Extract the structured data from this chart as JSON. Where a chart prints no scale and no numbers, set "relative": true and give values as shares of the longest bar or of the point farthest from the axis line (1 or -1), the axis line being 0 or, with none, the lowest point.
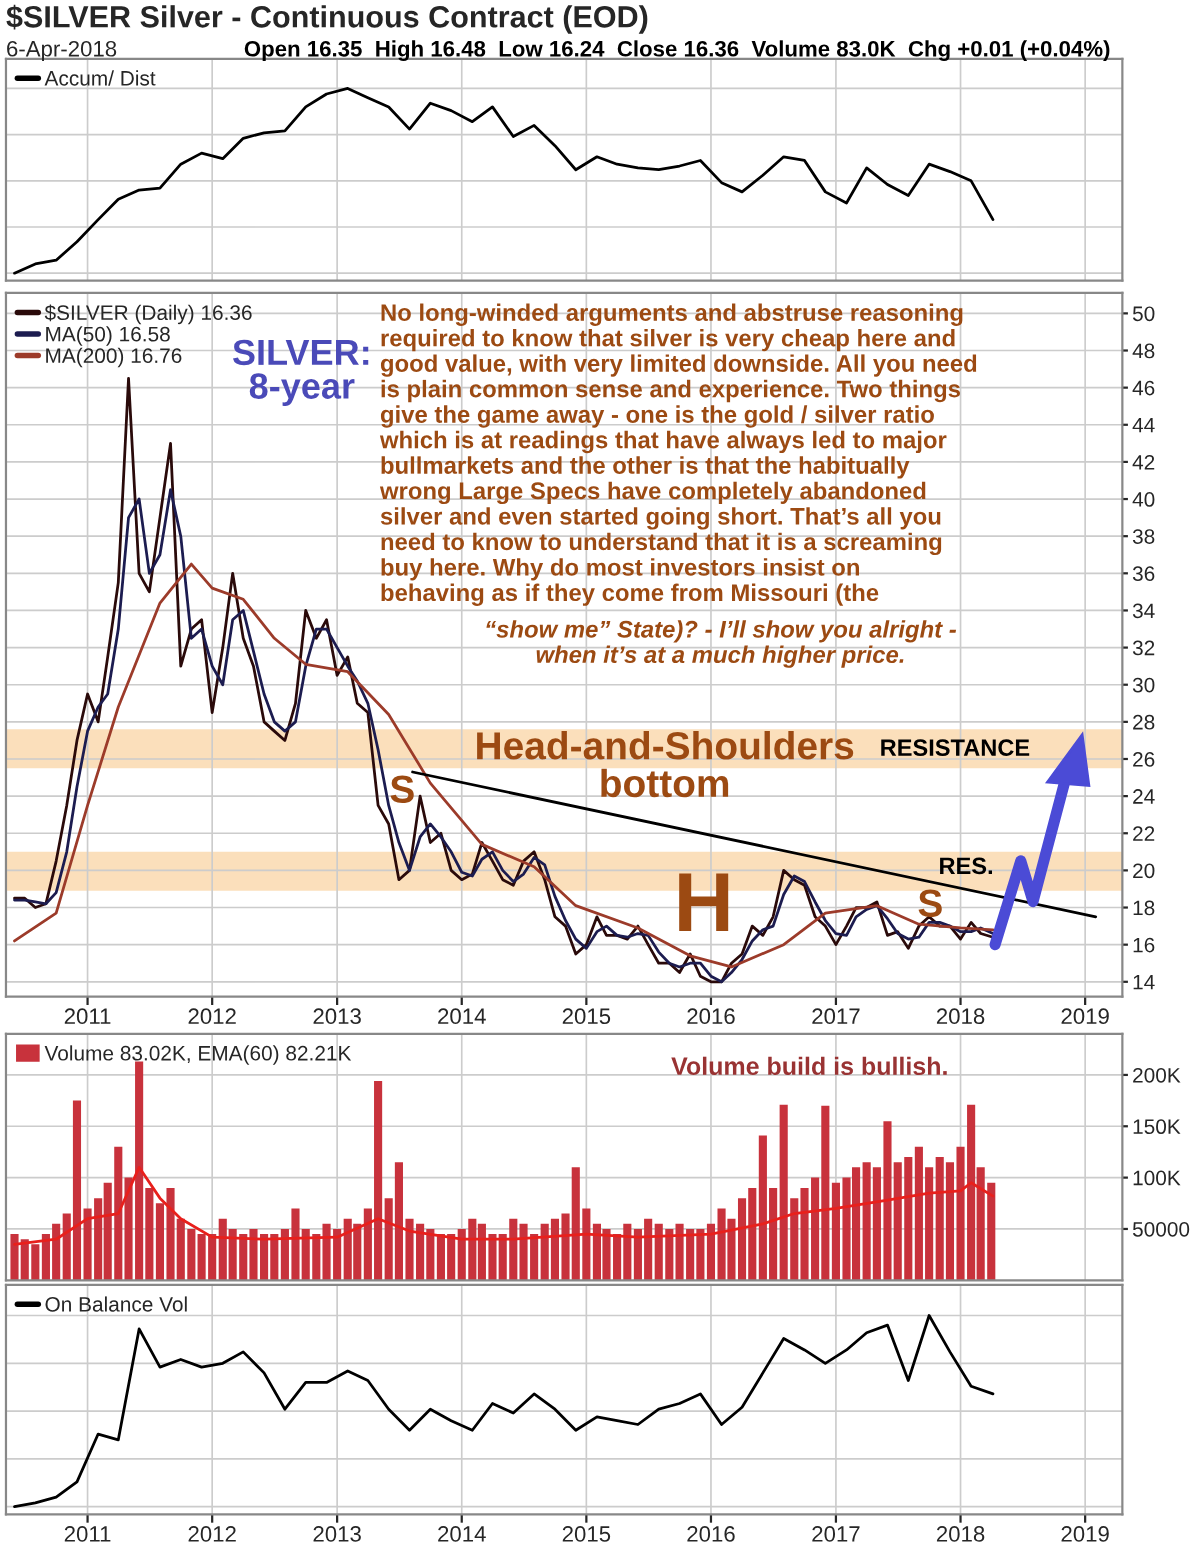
{
  "chart_data": [
    {
      "type": "line",
      "title": "$SILVER Silver - Continuous Contract (EOD)",
      "subtitle": "6-Apr-2018",
      "annotations": [
        "Open 16.35  High 16.48  Low 16.24  Close 16.36  Volume 83.0K  Chg +0.01 (+0.04%)"
      ],
      "relative": true,
      "tick_labels": false,
      "grid": true,
      "legend": "top left",
      "xlim": [
        "2010-05-07",
        "2019-04-20"
      ],
      "xticks": [
        "2011",
        "2012",
        "2013",
        "2014",
        "2015",
        "2016",
        "2017",
        "2018",
        "2019"
      ],
      "x": [
        "2010-06",
        "2010-08",
        "2010-10",
        "2010-12",
        "2011-02",
        "2011-04",
        "2011-06",
        "2011-08",
        "2011-10",
        "2011-12",
        "2012-02",
        "2012-04",
        "2012-06",
        "2012-08",
        "2012-10",
        "2012-12",
        "2013-02",
        "2013-04",
        "2013-06",
        "2013-08",
        "2013-10",
        "2013-12",
        "2014-02",
        "2014-04",
        "2014-06",
        "2014-08",
        "2014-10",
        "2014-12",
        "2015-02",
        "2015-04",
        "2015-06",
        "2015-08",
        "2015-10",
        "2015-12",
        "2016-02",
        "2016-04",
        "2016-06",
        "2016-08",
        "2016-10",
        "2016-12",
        "2017-02",
        "2017-04",
        "2017-06",
        "2017-08",
        "2017-10",
        "2017-12",
        "2018-02",
        "2018-04-06"
      ],
      "series": [
        {
          "name": "Accum/ Dist",
          "color": "#000000",
          "values": [
            0.0,
            0.05,
            0.07,
            0.17,
            0.29,
            0.4,
            0.45,
            0.46,
            0.59,
            0.65,
            0.62,
            0.73,
            0.76,
            0.77,
            0.9,
            0.97,
            1.0,
            0.95,
            0.9,
            0.78,
            0.92,
            0.88,
            0.82,
            0.9,
            0.74,
            0.8,
            0.69,
            0.56,
            0.63,
            0.59,
            0.57,
            0.56,
            0.58,
            0.61,
            0.49,
            0.44,
            0.53,
            0.63,
            0.61,
            0.44,
            0.38,
            0.57,
            0.48,
            0.42,
            0.59,
            0.55,
            0.5,
            0.29
          ]
        }
      ]
    },
    {
      "type": "line",
      "grid": true,
      "legend": "top left",
      "xlim": [
        "2010-05-07",
        "2019-04-20"
      ],
      "xticks": [
        "2011",
        "2012",
        "2013",
        "2014",
        "2015",
        "2016",
        "2017",
        "2018",
        "2019"
      ],
      "ylim": [
        13.2,
        51.1
      ],
      "yticks": [
        14,
        16,
        18,
        20,
        22,
        24,
        26,
        28,
        30,
        32,
        34,
        36,
        38,
        40,
        42,
        44,
        46,
        48,
        50
      ],
      "annotations": [
        "No long-winded arguments and abstruse reasoning\nrequired to know that silver is very cheap here and\ngood value, with very limited downside. All you need\nis plain common sense and experience. Two things\ngive the game away - one is the gold / silver ratio\nwhich is at readings that have always led to major\nbullmarkets and the other is that the habitually\nwrong Large Specs have completely abandoned\nsilver and even started going short. That’s all you\nneed to know to understand that it is a screaming\nbuy here. Why do most investors insist on\nbehaving as if they come from Missouri (the",
        "“show me” State)? - I’ll show you alright -\nwhen it’s at a much higher price.",
        "SILVER:\n8-year",
        "Head-and-Shoulders\nbottom",
        "RESISTANCE",
        "RES.",
        "S",
        "H",
        "S"
      ],
      "bands": [
        {
          "axis": "y",
          "from": 25.5,
          "to": 27.6,
          "color": "#fbdfbb"
        },
        {
          "axis": "y",
          "from": 18.9,
          "to": 21.0,
          "color": "#fbdfbb"
        }
      ],
      "x": [
        "2010-06",
        "2010-07",
        "2010-08",
        "2010-09",
        "2010-10",
        "2010-11",
        "2010-12",
        "2011-01",
        "2011-02",
        "2011-03",
        "2011-04",
        "2011-05",
        "2011-06",
        "2011-07",
        "2011-08",
        "2011-09",
        "2011-10",
        "2011-11",
        "2011-12",
        "2012-01",
        "2012-02",
        "2012-03",
        "2012-04",
        "2012-05",
        "2012-06",
        "2012-07",
        "2012-08",
        "2012-09",
        "2012-10",
        "2012-11",
        "2012-12",
        "2013-01",
        "2013-02",
        "2013-03",
        "2013-04",
        "2013-05",
        "2013-06",
        "2013-07",
        "2013-08",
        "2013-09",
        "2013-10",
        "2013-11",
        "2013-12",
        "2014-01",
        "2014-02",
        "2014-03",
        "2014-04",
        "2014-05",
        "2014-06",
        "2014-07",
        "2014-08",
        "2014-09",
        "2014-10",
        "2014-11",
        "2014-12",
        "2015-01",
        "2015-02",
        "2015-03",
        "2015-04",
        "2015-05",
        "2015-06",
        "2015-07",
        "2015-08",
        "2015-09",
        "2015-10",
        "2015-11",
        "2015-12",
        "2016-01",
        "2016-02",
        "2016-03",
        "2016-04",
        "2016-05",
        "2016-06",
        "2016-07",
        "2016-08",
        "2016-09",
        "2016-10",
        "2016-11",
        "2016-12",
        "2017-01",
        "2017-02",
        "2017-03",
        "2017-04",
        "2017-05",
        "2017-06",
        "2017-07",
        "2017-08",
        "2017-09",
        "2017-10",
        "2017-11",
        "2017-12",
        "2018-01",
        "2018-02",
        "2018-03",
        "2018-04-06"
      ],
      "series": [
        {
          "name": "$SILVER (Daily) 16.36",
          "color": "#2a0a0a",
          "values": [
            18.5,
            18.5,
            18.0,
            18.2,
            20.5,
            23.5,
            27.0,
            29.5,
            28.0,
            31.5,
            35.5,
            46.5,
            36.0,
            35.0,
            39.0,
            43.0,
            31.0,
            33.0,
            33.5,
            28.5,
            32.0,
            36.0,
            32.5,
            31.0,
            28.0,
            27.5,
            27.0,
            29.0,
            34.0,
            32.5,
            33.5,
            30.5,
            31.5,
            29.0,
            28.5,
            23.5,
            22.5,
            19.5,
            20.0,
            24.0,
            21.5,
            22.0,
            20.0,
            19.5,
            19.8,
            21.5,
            20.5,
            19.5,
            19.2,
            20.5,
            21.0,
            19.5,
            17.5,
            17.0,
            15.5,
            16.0,
            17.5,
            16.5,
            16.5,
            16.3,
            17.0,
            16.0,
            15.0,
            15.0,
            14.5,
            15.5,
            14.3,
            14.0,
            14.0,
            15.0,
            15.5,
            17.0,
            16.5,
            17.5,
            20.0,
            19.5,
            19.2,
            17.5,
            17.0,
            16.0,
            17.0,
            18.0,
            18.0,
            18.3,
            16.5,
            16.7,
            15.8,
            17.0,
            17.5,
            17.0,
            17.0,
            16.3,
            17.2,
            16.6,
            16.4
          ]
        },
        {
          "name": "MA(50) 16.58",
          "color": "#1c1c50",
          "values": [
            18.4,
            18.4,
            18.3,
            18.2,
            18.8,
            21.0,
            24.5,
            27.5,
            28.8,
            29.5,
            33.0,
            39.0,
            40.0,
            36.0,
            37.0,
            40.5,
            38.0,
            32.5,
            33.0,
            31.0,
            30.0,
            33.5,
            34.0,
            31.8,
            29.5,
            28.0,
            27.5,
            28.0,
            31.0,
            33.0,
            33.0,
            32.0,
            31.0,
            30.2,
            29.0,
            26.5,
            23.5,
            21.5,
            20.0,
            21.8,
            22.5,
            21.8,
            21.0,
            19.9,
            19.7,
            20.6,
            21.0,
            20.0,
            19.4,
            19.8,
            20.7,
            20.3,
            18.6,
            17.3,
            16.3,
            15.8,
            16.7,
            17.0,
            16.5,
            16.4,
            16.6,
            16.5,
            15.6,
            15.0,
            14.8,
            15.0,
            15.0,
            14.3,
            14.0,
            14.5,
            15.2,
            16.2,
            16.8,
            17.0,
            18.7,
            19.7,
            19.4,
            18.3,
            17.3,
            16.6,
            16.5,
            17.5,
            17.9,
            18.1,
            17.4,
            16.6,
            16.3,
            16.4,
            17.2,
            17.2,
            17.0,
            16.7,
            16.7,
            16.9,
            16.6
          ]
        },
        {
          "name": "MA(200) 16.76",
          "color": "#9c3b2a",
          "x": [
            "2010-06",
            "2010-10",
            "2011-01",
            "2011-04",
            "2011-08",
            "2011-11",
            "2012-01",
            "2012-04",
            "2012-07",
            "2012-10",
            "2013-02",
            "2013-06",
            "2013-10",
            "2014-03",
            "2014-08",
            "2014-12",
            "2015-06",
            "2015-11",
            "2016-03",
            "2016-08",
            "2016-12",
            "2017-05",
            "2017-09",
            "2018-01",
            "2018-04-06"
          ],
          "values": [
            16.2,
            17.7,
            23.5,
            28.8,
            34.4,
            36.5,
            35.2,
            34.6,
            32.5,
            31.1,
            30.7,
            28.4,
            24.7,
            21.4,
            20.2,
            18.1,
            16.9,
            15.4,
            14.8,
            16.0,
            17.7,
            18.1,
            17.1,
            16.9,
            16.8
          ]
        },
        {
          "type": "line",
          "color": "#000000",
          "x": [
            "2013-08-10",
            "2019-02-01"
          ],
          "values": [
            25.3,
            17.5
          ]
        }
      ]
    },
    {
      "type": "bar",
      "grid": true,
      "legend": "top left",
      "tick_labels": "y",
      "xlim": [
        "2010-05-07",
        "2019-04-20"
      ],
      "xticks": [
        "2011",
        "2012",
        "2013",
        "2014",
        "2015",
        "2016",
        "2017",
        "2018",
        "2019"
      ],
      "ylim": [
        0,
        240000
      ],
      "yticks": [
        {
          "value": 50000,
          "label": "50000"
        },
        {
          "value": 100000,
          "label": "100K"
        },
        {
          "value": 150000,
          "label": "150K"
        },
        {
          "value": 200000,
          "label": "200K"
        }
      ],
      "annotations": [
        "Volume build is bullish."
      ],
      "series": [
        {
          "name": "Volume 83.02K, EMA(60) 82.21K",
          "color": "#c8323c",
          "x": [
            "2010-06",
            "2010-07",
            "2010-08",
            "2010-09",
            "2010-10",
            "2010-11",
            "2010-12",
            "2011-01",
            "2011-02",
            "2011-03",
            "2011-04",
            "2011-05",
            "2011-06",
            "2011-07",
            "2011-08",
            "2011-09",
            "2011-10",
            "2011-11",
            "2011-12",
            "2012-01",
            "2012-02",
            "2012-03",
            "2012-04",
            "2012-05",
            "2012-06",
            "2012-07",
            "2012-08",
            "2012-09",
            "2012-10",
            "2012-11",
            "2012-12",
            "2013-01",
            "2013-02",
            "2013-03",
            "2013-04",
            "2013-05",
            "2013-06",
            "2013-07",
            "2013-08",
            "2013-09",
            "2013-10",
            "2013-11",
            "2013-12",
            "2014-01",
            "2014-02",
            "2014-03",
            "2014-04",
            "2014-05",
            "2014-06",
            "2014-07",
            "2014-08",
            "2014-09",
            "2014-10",
            "2014-11",
            "2014-12",
            "2015-01",
            "2015-02",
            "2015-03",
            "2015-04",
            "2015-05",
            "2015-06",
            "2015-07",
            "2015-08",
            "2015-09",
            "2015-10",
            "2015-11",
            "2015-12",
            "2016-01",
            "2016-02",
            "2016-03",
            "2016-04",
            "2016-05",
            "2016-06",
            "2016-07",
            "2016-08",
            "2016-09",
            "2016-10",
            "2016-11",
            "2016-12",
            "2017-01",
            "2017-02",
            "2017-03",
            "2017-04",
            "2017-05",
            "2017-06",
            "2017-07",
            "2017-08",
            "2017-09",
            "2017-10",
            "2017-11",
            "2017-12",
            "2018-01",
            "2018-02",
            "2018-03",
            "2018-04"
          ],
          "values": [
            45000,
            40000,
            35000,
            45000,
            55000,
            65000,
            175000,
            70000,
            80000,
            95000,
            130000,
            100000,
            213000,
            90000,
            75000,
            90000,
            60000,
            50000,
            45000,
            45000,
            60000,
            50000,
            45000,
            50000,
            45000,
            45000,
            50000,
            70000,
            50000,
            45000,
            55000,
            50000,
            60000,
            55000,
            70000,
            194000,
            80000,
            115000,
            60000,
            55000,
            50000,
            45000,
            45000,
            50000,
            60000,
            55000,
            45000,
            45000,
            60000,
            55000,
            45000,
            55000,
            60000,
            65000,
            110000,
            70000,
            55000,
            50000,
            45000,
            55000,
            50000,
            60000,
            55000,
            50000,
            55000,
            50000,
            50000,
            55000,
            70000,
            60000,
            80000,
            90000,
            141000,
            90000,
            171000,
            80000,
            90000,
            100000,
            170000,
            95000,
            100000,
            110000,
            115000,
            110000,
            155000,
            115000,
            120000,
            130000,
            110000,
            120000,
            115000,
            130000,
            171000,
            110000,
            95000
          ]
        },
        {
          "type": "line",
          "color": "#e8201c",
          "x": [
            "2010-06",
            "2010-10",
            "2011-01",
            "2011-04",
            "2011-06",
            "2011-08",
            "2011-10",
            "2012-01",
            "2012-06",
            "2013-01",
            "2013-05",
            "2013-08",
            "2014-01",
            "2014-06",
            "2015-01",
            "2015-06",
            "2016-01",
            "2016-06",
            "2016-09",
            "2017-01",
            "2017-06",
            "2017-10",
            "2018-01",
            "2018-02",
            "2018-04-06"
          ],
          "values": [
            35000,
            40000,
            60000,
            65000,
            110000,
            80000,
            60000,
            42000,
            40000,
            42000,
            60000,
            48000,
            40000,
            40000,
            45000,
            42000,
            45000,
            55000,
            65000,
            70000,
            78000,
            85000,
            87000,
            95000,
            82000
          ]
        }
      ]
    },
    {
      "type": "line",
      "relative": true,
      "tick_labels": "x",
      "grid": true,
      "legend": "top left",
      "xlim": [
        "2010-05-07",
        "2019-04-20"
      ],
      "xticks": [
        "2011",
        "2012",
        "2013",
        "2014",
        "2015",
        "2016",
        "2017",
        "2018",
        "2019"
      ],
      "x": [
        "2010-06",
        "2010-08",
        "2010-10",
        "2010-12",
        "2011-02",
        "2011-04",
        "2011-06",
        "2011-08",
        "2011-10",
        "2011-12",
        "2012-02",
        "2012-04",
        "2012-06",
        "2012-08",
        "2012-10",
        "2012-12",
        "2013-02",
        "2013-04",
        "2013-06",
        "2013-08",
        "2013-10",
        "2013-12",
        "2014-02",
        "2014-04",
        "2014-06",
        "2014-08",
        "2014-10",
        "2014-12",
        "2015-02",
        "2015-04",
        "2015-06",
        "2015-08",
        "2015-10",
        "2015-12",
        "2016-02",
        "2016-04",
        "2016-06",
        "2016-08",
        "2016-10",
        "2016-12",
        "2017-02",
        "2017-04",
        "2017-06",
        "2017-08",
        "2017-10",
        "2017-12",
        "2018-02",
        "2018-04-06"
      ],
      "series": [
        {
          "name": "On Balance Vol",
          "color": "#000000",
          "values": [
            0.0,
            0.02,
            0.05,
            0.13,
            0.38,
            0.35,
            0.93,
            0.73,
            0.77,
            0.73,
            0.75,
            0.81,
            0.7,
            0.51,
            0.65,
            0.65,
            0.71,
            0.66,
            0.51,
            0.4,
            0.51,
            0.45,
            0.4,
            0.54,
            0.49,
            0.59,
            0.51,
            0.4,
            0.47,
            0.45,
            0.43,
            0.51,
            0.54,
            0.59,
            0.43,
            0.52,
            0.7,
            0.88,
            0.82,
            0.75,
            0.82,
            0.91,
            0.95,
            0.66,
            1.0,
            0.81,
            0.63,
            0.59
          ]
        }
      ]
    }
  ]
}
